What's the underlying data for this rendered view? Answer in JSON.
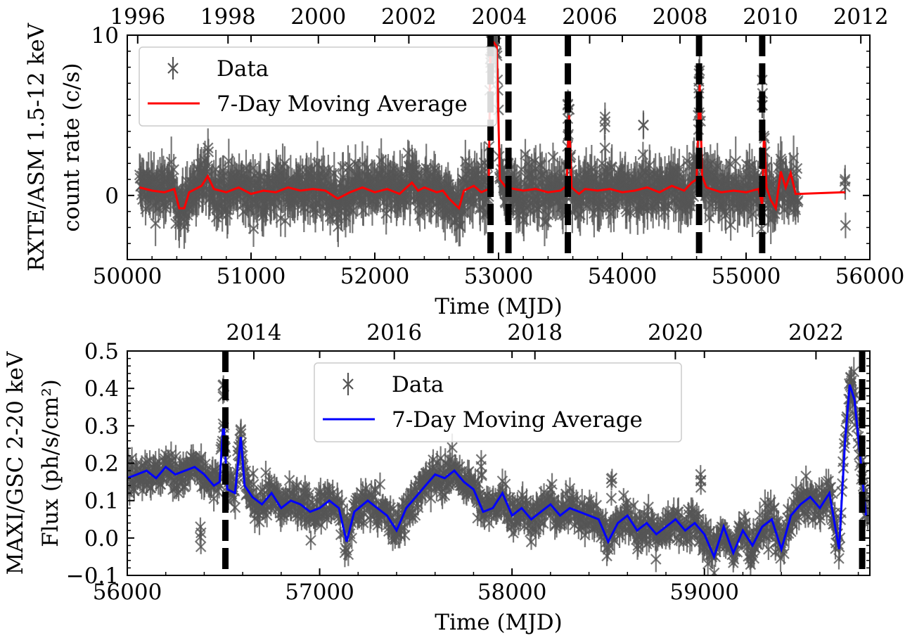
{
  "chart_data": [
    {
      "type": "scatter",
      "panel": "top",
      "xlabel": "Time (MJD)",
      "ylabel_line1": "RXTE/ASM 1.5-12 keV",
      "ylabel_line2": "count rate (c/s)",
      "xlim": [
        50000,
        56000
      ],
      "ylim": [
        -4,
        10
      ],
      "x_ticks": [
        50000,
        51000,
        52000,
        53000,
        54000,
        55000,
        56000
      ],
      "x_tick_labels": [
        "50000",
        "51000",
        "52000",
        "53000",
        "54000",
        "55000",
        "56000"
      ],
      "y_ticks": [
        0,
        10
      ],
      "y_tick_labels": [
        "0",
        "10"
      ],
      "top_axis_ticks": [
        50084,
        50814,
        51544,
        52275,
        53005,
        53736,
        54466,
        55197,
        55927
      ],
      "top_axis_labels": [
        "1996",
        "1998",
        "2000",
        "2002",
        "2004",
        "2006",
        "2008",
        "2010",
        "2012"
      ],
      "legend": {
        "position": "top-left",
        "entries": [
          "Data",
          "7-Day Moving Average"
        ]
      },
      "series": [
        {
          "name": "Data",
          "style": "x-markers with error bars",
          "color": "#555555",
          "baseline_mean": 0.3,
          "baseline_spread": 2.0,
          "x_range": [
            50100,
            55420
          ],
          "outbursts": [
            {
              "x": 52940,
              "y": 9.0
            },
            {
              "x": 53560,
              "y": 5.7
            },
            {
              "x": 54620,
              "y": 7.6
            },
            {
              "x": 55130,
              "y": 7.2
            },
            {
              "x": 54170,
              "y": 4.4
            },
            {
              "x": 53860,
              "y": 4.9
            },
            {
              "x": 55800,
              "y": 1.0
            }
          ]
        },
        {
          "name": "7-Day Moving Average",
          "style": "line",
          "color": "#ff0000",
          "points": [
            [
              50100,
              0.5
            ],
            [
              50200,
              0.3
            ],
            [
              50300,
              0.2
            ],
            [
              50380,
              0.4
            ],
            [
              50420,
              -0.8
            ],
            [
              50460,
              -0.8
            ],
            [
              50500,
              0.2
            ],
            [
              50600,
              0.6
            ],
            [
              50650,
              1.2
            ],
            [
              50700,
              0.4
            ],
            [
              50800,
              0.2
            ],
            [
              50900,
              0.5
            ],
            [
              51000,
              0.1
            ],
            [
              51100,
              0.3
            ],
            [
              51200,
              0.2
            ],
            [
              51300,
              0.5
            ],
            [
              51400,
              0.3
            ],
            [
              51500,
              0.4
            ],
            [
              51600,
              0.3
            ],
            [
              51700,
              -0.2
            ],
            [
              51800,
              0.2
            ],
            [
              51900,
              0.5
            ],
            [
              52000,
              0.2
            ],
            [
              52100,
              0.4
            ],
            [
              52200,
              0.1
            ],
            [
              52300,
              0.8
            ],
            [
              52350,
              0.3
            ],
            [
              52400,
              0.5
            ],
            [
              52500,
              0.2
            ],
            [
              52550,
              0.3
            ],
            [
              52600,
              -0.2
            ],
            [
              52680,
              -0.8
            ],
            [
              52720,
              0.3
            ],
            [
              52800,
              0.6
            ],
            [
              52860,
              0.2
            ],
            [
              52920,
              0.4
            ],
            [
              52935,
              9.7
            ],
            [
              52955,
              9.6
            ],
            [
              52985,
              9.3
            ],
            [
              53010,
              1.0
            ],
            [
              53060,
              0.5
            ],
            [
              53200,
              0.3
            ],
            [
              53300,
              0.4
            ],
            [
              53400,
              0.2
            ],
            [
              53500,
              0.3
            ],
            [
              53550,
              0.6
            ],
            [
              53570,
              5.0
            ],
            [
              53590,
              0.5
            ],
            [
              53650,
              0.1
            ],
            [
              53700,
              0.4
            ],
            [
              53800,
              0.3
            ],
            [
              53900,
              0.4
            ],
            [
              54000,
              0.2
            ],
            [
              54100,
              0.3
            ],
            [
              54200,
              0.5
            ],
            [
              54300,
              0.2
            ],
            [
              54400,
              0.6
            ],
            [
              54500,
              0.3
            ],
            [
              54560,
              0.8
            ],
            [
              54600,
              1.0
            ],
            [
              54625,
              6.9
            ],
            [
              54645,
              1.2
            ],
            [
              54680,
              0.5
            ],
            [
              54800,
              0.2
            ],
            [
              54900,
              0.3
            ],
            [
              55000,
              0.2
            ],
            [
              55100,
              0.4
            ],
            [
              55130,
              -0.6
            ],
            [
              55145,
              4.0
            ],
            [
              55165,
              0.5
            ],
            [
              55200,
              -0.3
            ],
            [
              55240,
              -0.8
            ],
            [
              55280,
              1.5
            ],
            [
              55320,
              0.5
            ],
            [
              55360,
              1.4
            ],
            [
              55400,
              0.1
            ],
            [
              55430,
              0.1
            ],
            [
              55800,
              0.2
            ]
          ]
        }
      ],
      "vertical_lines_mjd": [
        52935,
        53080,
        53560,
        54620,
        55130
      ]
    },
    {
      "type": "scatter",
      "panel": "bottom",
      "xlabel": "Time (MJD)",
      "ylabel_line1": "MAXI/GSC 2-20 keV",
      "ylabel_line2": "Flux (ph/s/cm²)",
      "xlim": [
        56000,
        59860
      ],
      "ylim": [
        -0.1,
        0.5
      ],
      "x_ticks": [
        56000,
        57000,
        58000,
        59000
      ],
      "x_tick_labels": [
        "56000",
        "57000",
        "58000",
        "59000"
      ],
      "y_ticks": [
        -0.1,
        0.0,
        0.1,
        0.2,
        0.3,
        0.4,
        0.5
      ],
      "y_tick_labels": [
        "−0.1",
        "0.0",
        "0.1",
        "0.2",
        "0.3",
        "0.4",
        "0.5"
      ],
      "top_axis_ticks": [
        56658,
        57388,
        58119,
        58849,
        59580
      ],
      "top_axis_labels": [
        "2014",
        "2016",
        "2018",
        "2020",
        "2022"
      ],
      "legend": {
        "position": "top-center",
        "entries": [
          "Data",
          "7-Day Moving Average"
        ]
      },
      "series": [
        {
          "name": "Data",
          "style": "x-markers with error bars",
          "color": "#555555",
          "spread": 0.05,
          "x_range": [
            56000,
            59860
          ],
          "outliers": [
            {
              "x": 56380,
              "y": 0.03
            },
            {
              "x": 56500,
              "y": 0.41
            },
            {
              "x": 56590,
              "y": 0.29
            },
            {
              "x": 57840,
              "y": 0.21
            },
            {
              "x": 58520,
              "y": 0.16
            },
            {
              "x": 58980,
              "y": 0.17
            },
            {
              "x": 59760,
              "y": 0.43
            }
          ]
        },
        {
          "name": "7-Day Moving Average",
          "style": "line",
          "color": "#0000ff",
          "points": [
            [
              56000,
              0.16
            ],
            [
              56050,
              0.17
            ],
            [
              56100,
              0.18
            ],
            [
              56150,
              0.16
            ],
            [
              56200,
              0.19
            ],
            [
              56250,
              0.17
            ],
            [
              56300,
              0.18
            ],
            [
              56350,
              0.19
            ],
            [
              56400,
              0.17
            ],
            [
              56450,
              0.14
            ],
            [
              56480,
              0.15
            ],
            [
              56500,
              0.31
            ],
            [
              56520,
              0.13
            ],
            [
              56560,
              0.12
            ],
            [
              56590,
              0.27
            ],
            [
              56610,
              0.14
            ],
            [
              56650,
              0.11
            ],
            [
              56700,
              0.09
            ],
            [
              56750,
              0.12
            ],
            [
              56800,
              0.08
            ],
            [
              56850,
              0.1
            ],
            [
              56900,
              0.09
            ],
            [
              56950,
              0.07
            ],
            [
              57000,
              0.08
            ],
            [
              57050,
              0.1
            ],
            [
              57100,
              0.08
            ],
            [
              57140,
              -0.01
            ],
            [
              57180,
              0.07
            ],
            [
              57250,
              0.1
            ],
            [
              57300,
              0.08
            ],
            [
              57350,
              0.06
            ],
            [
              57400,
              0.02
            ],
            [
              57450,
              0.08
            ],
            [
              57500,
              0.11
            ],
            [
              57550,
              0.14
            ],
            [
              57600,
              0.17
            ],
            [
              57650,
              0.16
            ],
            [
              57700,
              0.18
            ],
            [
              57750,
              0.15
            ],
            [
              57800,
              0.13
            ],
            [
              57850,
              0.07
            ],
            [
              57900,
              0.08
            ],
            [
              57950,
              0.12
            ],
            [
              58000,
              0.06
            ],
            [
              58050,
              0.08
            ],
            [
              58100,
              0.05
            ],
            [
              58150,
              0.07
            ],
            [
              58200,
              0.09
            ],
            [
              58250,
              0.06
            ],
            [
              58300,
              0.08
            ],
            [
              58350,
              0.07
            ],
            [
              58400,
              0.06
            ],
            [
              58450,
              0.05
            ],
            [
              58500,
              -0.01
            ],
            [
              58550,
              0.04
            ],
            [
              58600,
              0.06
            ],
            [
              58650,
              0.02
            ],
            [
              58700,
              0.04
            ],
            [
              58750,
              0.01
            ],
            [
              58800,
              0.03
            ],
            [
              58850,
              0.05
            ],
            [
              58900,
              0.02
            ],
            [
              58950,
              0.04
            ],
            [
              59000,
              0.01
            ],
            [
              59050,
              -0.05
            ],
            [
              59100,
              0.03
            ],
            [
              59150,
              -0.04
            ],
            [
              59200,
              0.02
            ],
            [
              59250,
              -0.02
            ],
            [
              59300,
              0.03
            ],
            [
              59350,
              0.05
            ],
            [
              59400,
              -0.03
            ],
            [
              59450,
              0.06
            ],
            [
              59500,
              0.09
            ],
            [
              59550,
              0.11
            ],
            [
              59600,
              0.08
            ],
            [
              59650,
              0.12
            ],
            [
              59700,
              -0.03
            ],
            [
              59730,
              0.25
            ],
            [
              59755,
              0.41
            ],
            [
              59780,
              0.37
            ],
            [
              59810,
              0.22
            ],
            [
              59840,
              0.06
            ]
          ]
        }
      ],
      "vertical_lines_mjd": [
        56510,
        59820
      ]
    }
  ]
}
